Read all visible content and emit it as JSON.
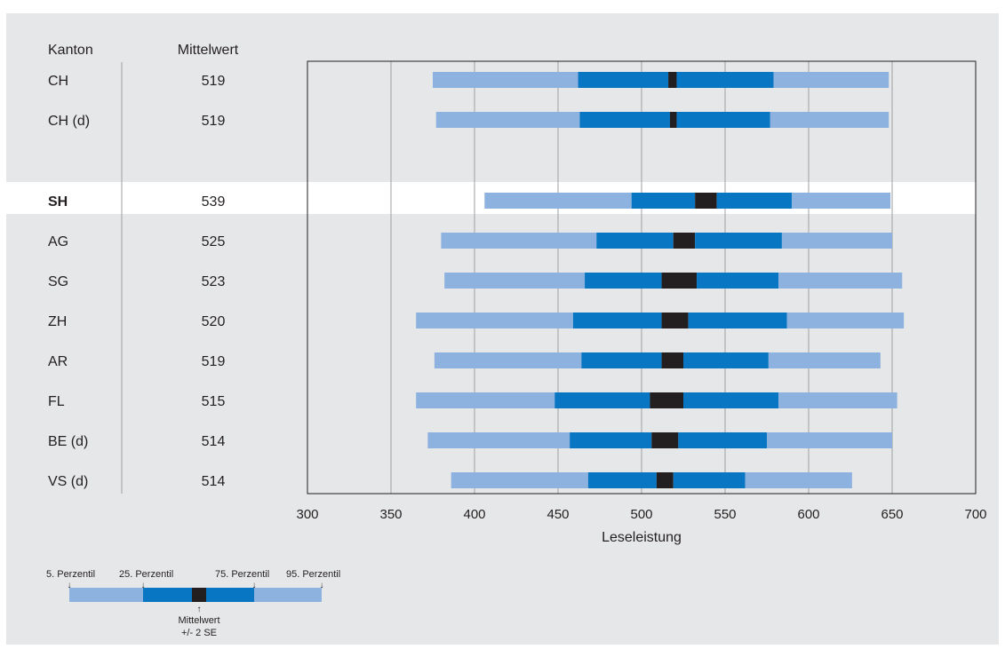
{
  "chart_data": {
    "type": "bar",
    "subtype": "percentile-band",
    "headers": {
      "canton": "Kanton",
      "mean": "Mittelwert"
    },
    "xlabel": "Leseleistung",
    "xlim": [
      300,
      700
    ],
    "xticks": [
      300,
      350,
      400,
      450,
      500,
      550,
      600,
      650,
      700
    ],
    "grid": true,
    "highlight": "SH",
    "colors": {
      "outer": "#8eb2df",
      "inner": "#0876c2",
      "ci": "#231f20",
      "background": "#e6e7e8",
      "highlight_band": "#ffffff"
    },
    "groups": [
      [
        {
          "canton": "CH",
          "mean": "519",
          "p5": 375,
          "p25": 462,
          "ci_low": 516,
          "ci_high": 521,
          "p75": 579,
          "p95": 648
        },
        {
          "canton": "CH (d)",
          "mean": "519",
          "p5": 377,
          "p25": 463,
          "ci_low": 517,
          "ci_high": 521,
          "p75": 577,
          "p95": 648
        }
      ],
      [
        {
          "canton": "SH",
          "mean": "539",
          "p5": 406,
          "p25": 494,
          "ci_low": 532,
          "ci_high": 545,
          "p75": 590,
          "p95": 649
        },
        {
          "canton": "AG",
          "mean": "525",
          "p5": 380,
          "p25": 473,
          "ci_low": 519,
          "ci_high": 532,
          "p75": 584,
          "p95": 650
        },
        {
          "canton": "SG",
          "mean": "523",
          "p5": 382,
          "p25": 466,
          "ci_low": 512,
          "ci_high": 533,
          "p75": 582,
          "p95": 656
        },
        {
          "canton": "ZH",
          "mean": "520",
          "p5": 365,
          "p25": 459,
          "ci_low": 512,
          "ci_high": 528,
          "p75": 587,
          "p95": 657
        },
        {
          "canton": "AR",
          "mean": "519",
          "p5": 376,
          "p25": 464,
          "ci_low": 512,
          "ci_high": 525,
          "p75": 576,
          "p95": 643
        },
        {
          "canton": "FL",
          "mean": "515",
          "p5": 365,
          "p25": 448,
          "ci_low": 505,
          "ci_high": 525,
          "p75": 582,
          "p95": 653
        },
        {
          "canton": "BE (d)",
          "mean": "514",
          "p5": 372,
          "p25": 457,
          "ci_low": 506,
          "ci_high": 522,
          "p75": 575,
          "p95": 650
        },
        {
          "canton": "VS (d)",
          "mean": "514",
          "p5": 386,
          "p25": 468,
          "ci_low": 509,
          "ci_high": 519,
          "p75": 562,
          "p95": 626
        }
      ]
    ],
    "legend": {
      "p5": "5. Perzentil",
      "p25": "25. Perzentil",
      "p75": "75. Perzentil",
      "p95": "95. Perzentil",
      "ci": "Mittelwert",
      "ci2": "+/- 2 SE"
    }
  }
}
